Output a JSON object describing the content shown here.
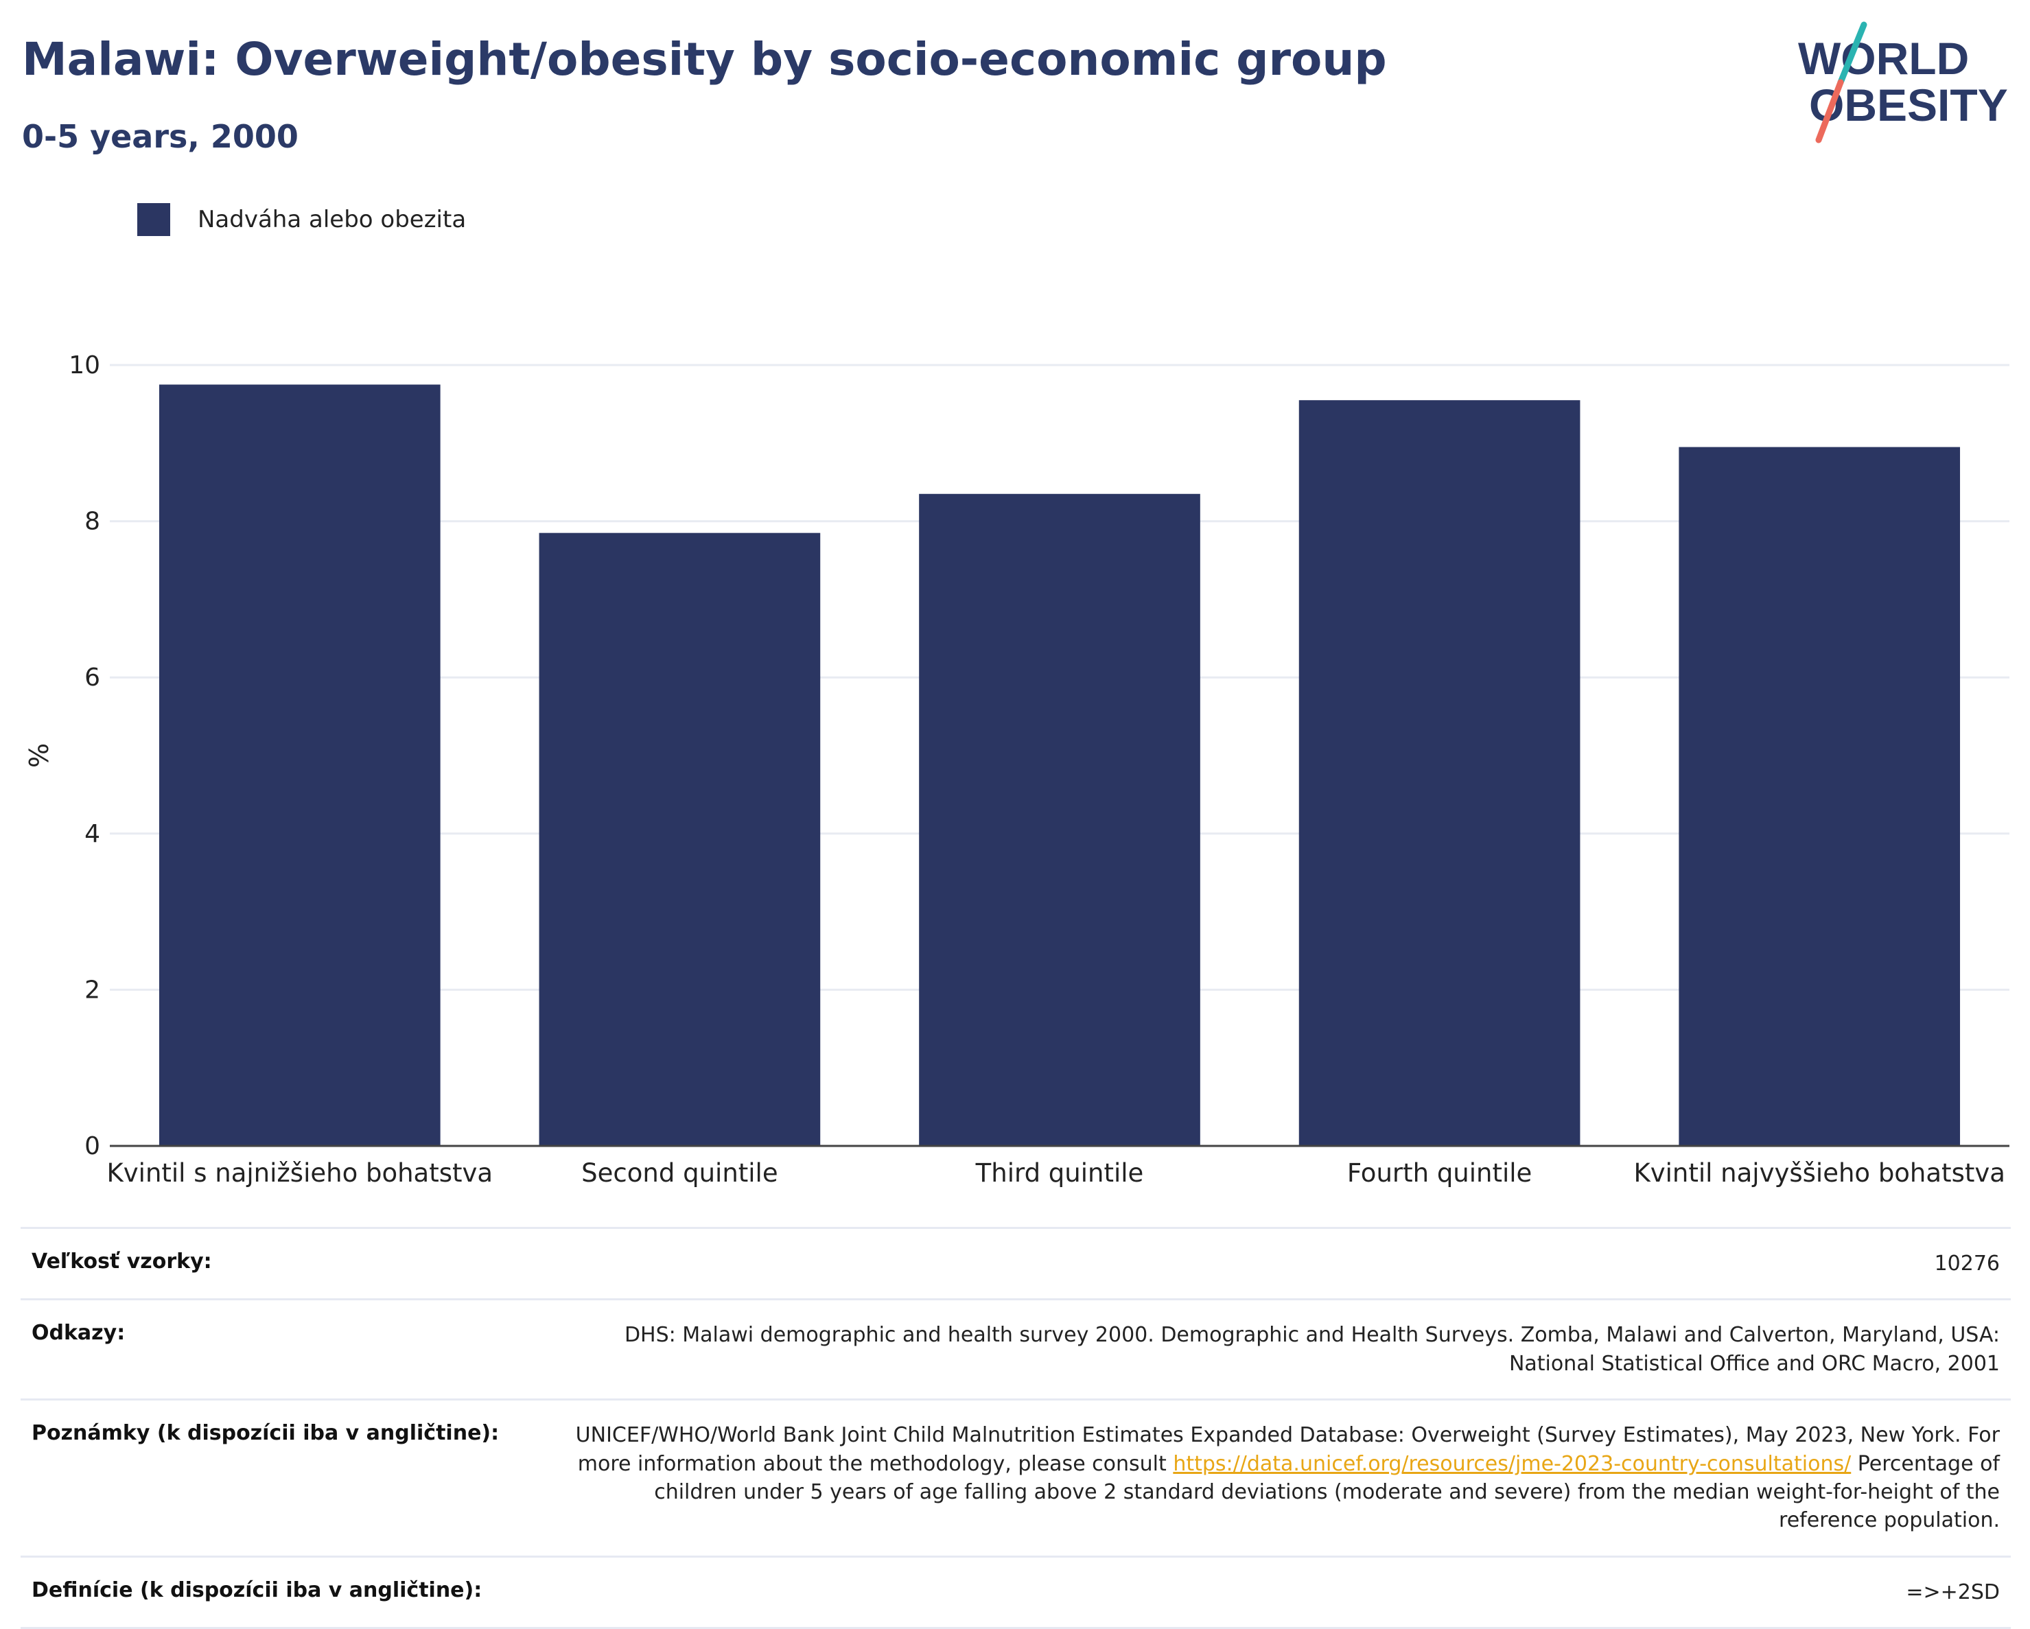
{
  "header": {
    "title": "Malawi: Overweight/obesity by socio-economic group",
    "subtitle": "0-5 years, 2000"
  },
  "logo": {
    "line1": "WORLD",
    "line2": "OBESITY",
    "colors": {
      "text": "#2b3a67",
      "slash_top": "#2ab3b1",
      "slash_bottom": "#ec6a5c"
    }
  },
  "legend": {
    "label": "Nadváha alebo obezita",
    "color": "#2b3662"
  },
  "chart_data": {
    "type": "bar",
    "categories": [
      "Kvintil s najnižšieho bohatstva",
      "Second quintile",
      "Third quintile",
      "Fourth quintile",
      "Kvintil najvyššieho bohatstva"
    ],
    "series": [
      {
        "name": "Nadváha alebo obezita",
        "values": [
          9.75,
          7.85,
          8.35,
          9.55,
          8.95
        ]
      }
    ],
    "ylabel": "%",
    "ylim": [
      0,
      10
    ],
    "yticks": [
      0,
      2,
      4,
      6,
      8,
      10
    ],
    "grid": true,
    "bar_color": "#2b3662"
  },
  "meta": {
    "sample_size": {
      "label": "Veľkosť vzorky:",
      "value": "10276"
    },
    "references": {
      "label": "Odkazy:",
      "value": "DHS: Malawi demographic and health survey 2000. Demographic and Health Surveys. Zomba, Malawi and Calverton, Maryland, USA: National Statistical Office and ORC Macro, 2001"
    },
    "notes": {
      "label": "Poznámky (k dispozícii iba v angličtine):",
      "text_before": "UNICEF/WHO/World Bank Joint Child Malnutrition Estimates Expanded Database: Overweight (Survey Estimates), May 2023, New York. For more information about the methodology, please consult ",
      "link": "https://data.unicef.org/resources/jme-2023-country-consultations/",
      "text_after": " Percentage of children under 5 years of age falling above 2 standard deviations (moderate and severe) from the median weight-for-height of the reference population."
    },
    "definitions": {
      "label": "Definície (k dispozícii iba v angličtine):",
      "value": "=>+2SD"
    }
  }
}
